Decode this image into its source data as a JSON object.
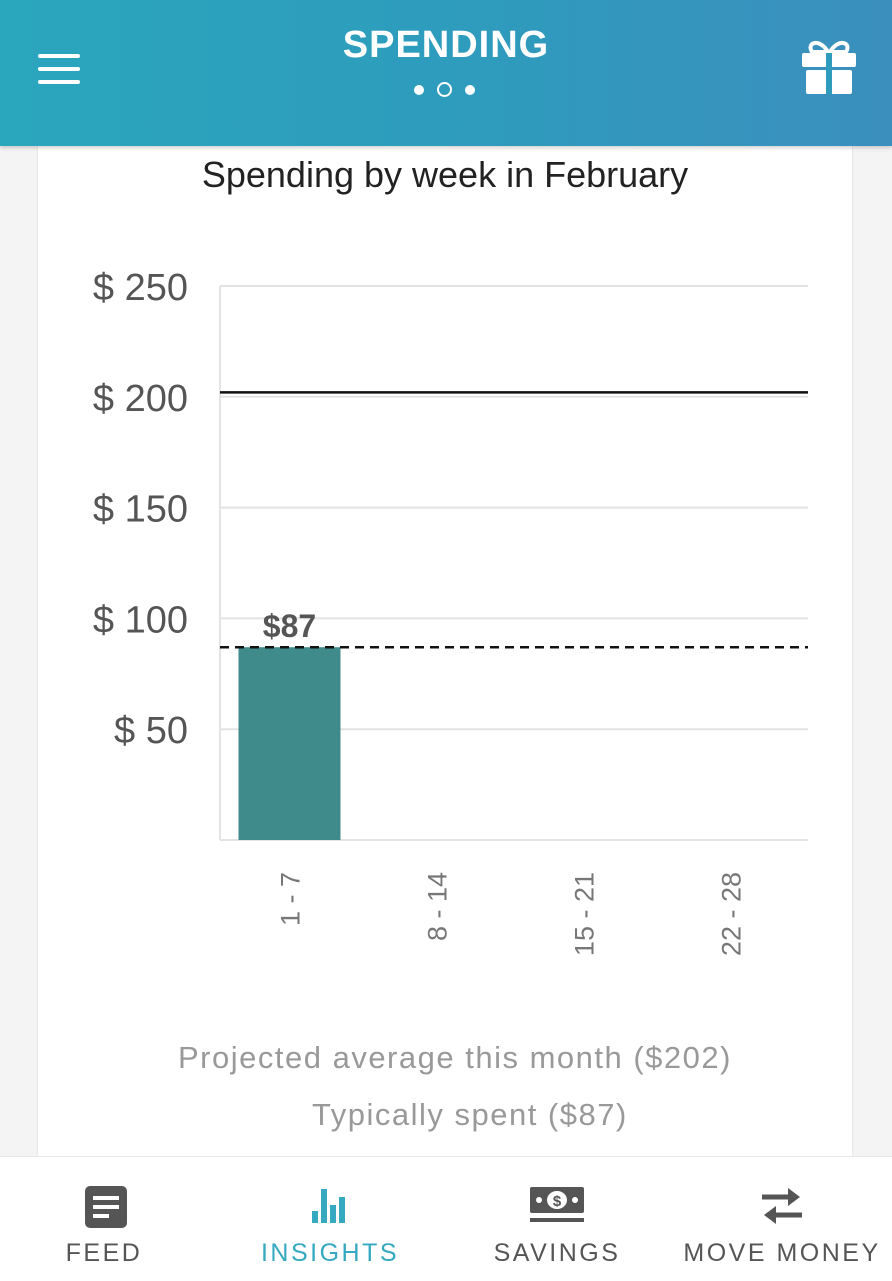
{
  "header": {
    "title": "SPENDING",
    "pager": {
      "count": 3,
      "active_index": 1
    },
    "menu_icon": "hamburger-menu-icon",
    "gift_icon": "gift-icon"
  },
  "chart_data": {
    "type": "bar",
    "title": "Spending by week in February",
    "categories": [
      "1 - 7",
      "8 - 14",
      "15 - 21",
      "22 - 28"
    ],
    "values": [
      87,
      null,
      null,
      null
    ],
    "data_labels": [
      "$87",
      "",
      "",
      ""
    ],
    "ylim": [
      0,
      250
    ],
    "y_ticks": [
      50,
      100,
      150,
      200,
      250
    ],
    "y_tick_labels": [
      "$ 50",
      "$ 100",
      "$ 150",
      "$ 200",
      "$ 250"
    ],
    "grid": true,
    "reference_lines": [
      {
        "label": "Projected average this month ($202)",
        "value": 202,
        "style": "solid"
      },
      {
        "label": "Typically spent ($87)",
        "value": 87,
        "style": "dashed"
      }
    ],
    "colors": {
      "bar": "#3f8b8c",
      "grid": "#e3e3e3",
      "reference": "#111111"
    }
  },
  "nav": {
    "items": [
      {
        "label": "FEED",
        "icon": "feed-icon",
        "active": false
      },
      {
        "label": "INSIGHTS",
        "icon": "insights-chart-icon",
        "active": true
      },
      {
        "label": "SAVINGS",
        "icon": "savings-money-icon",
        "active": false
      },
      {
        "label": "MOVE MONEY",
        "icon": "transfer-arrows-icon",
        "active": false
      }
    ]
  },
  "colors": {
    "header_start": "#2aa6bd",
    "header_end": "#3b8fbd",
    "accent": "#34a9bf",
    "nav_text": "#555555"
  }
}
